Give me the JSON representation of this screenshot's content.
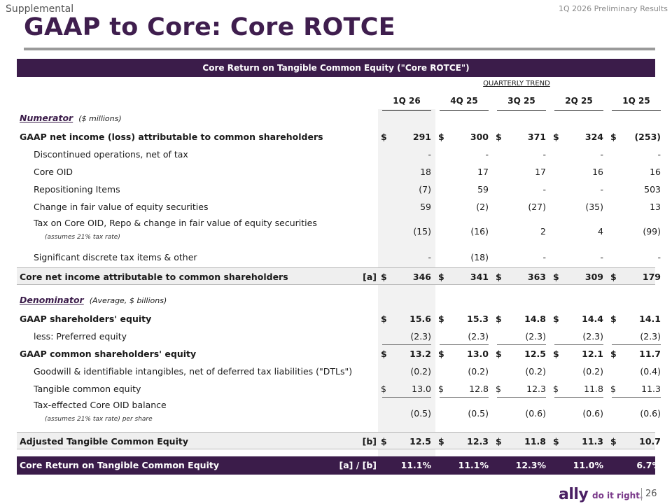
{
  "header": {
    "supplemental": "Supplemental",
    "prelim": "1Q 2026 Preliminary Results",
    "title": "GAAP to Core: Core ROTCE"
  },
  "table": {
    "banner": "Core Return on Tangible Common Equity (\"Core ROTCE\")",
    "trend_label": "QUARTERLY TREND",
    "columns": [
      "1Q 26",
      "4Q 25",
      "3Q 25",
      "2Q 25",
      "1Q 25"
    ],
    "numerator": {
      "head": "Numerator",
      "note": "($ millions)"
    },
    "denominator": {
      "head": "Denominator",
      "note": "(Average, $ billions)"
    },
    "rows": [
      {
        "label": "GAAP net income (loss) attributable to common shareholders",
        "bold": true,
        "dollar": true,
        "values": [
          "291",
          "300",
          "371",
          "324",
          "(253)"
        ]
      },
      {
        "label": "Discontinued operations, net of tax",
        "indent": true,
        "values": [
          "-",
          "-",
          "-",
          "-",
          "-"
        ]
      },
      {
        "label": "Core OID",
        "indent": true,
        "values": [
          "18",
          "17",
          "17",
          "16",
          "16"
        ]
      },
      {
        "label": "Repositioning Items",
        "indent": true,
        "values": [
          "(7)",
          "59",
          "-",
          "-",
          "503"
        ]
      },
      {
        "label": "Change in fair value of equity securities",
        "indent": true,
        "values": [
          "59",
          "(2)",
          "(27)",
          "(35)",
          "13"
        ]
      },
      {
        "label": "Tax on Core OID, Repo & change in fair value of equity securities",
        "sub": "(assumes 21% tax rate)",
        "indent": true,
        "values": [
          "(15)",
          "(16)",
          "2",
          "4",
          "(99)"
        ]
      },
      {
        "label": "Significant discrete tax items & other",
        "indent": true,
        "values": [
          "-",
          "(18)",
          "-",
          "-",
          "-"
        ]
      },
      {
        "label": "Core net income attributable to common shareholders",
        "tag": "[a]",
        "bold": true,
        "dollar": true,
        "shade": true,
        "values": [
          "346",
          "341",
          "363",
          "309",
          "179"
        ]
      },
      {
        "label": "GAAP shareholders' equity",
        "bold": true,
        "dollar": true,
        "values": [
          "15.6",
          "15.3",
          "14.8",
          "14.4",
          "14.1"
        ]
      },
      {
        "label": "less:  Preferred equity",
        "indent": true,
        "values": [
          "(2.3)",
          "(2.3)",
          "(2.3)",
          "(2.3)",
          "(2.3)"
        ]
      },
      {
        "label": "GAAP common shareholders' equity",
        "bold": true,
        "dollar": true,
        "values": [
          "13.2",
          "13.0",
          "12.5",
          "12.1",
          "11.7"
        ]
      },
      {
        "label": "Goodwill & identifiable intangibles, net of deferred tax liabilities (\"DTLs\")",
        "indent": true,
        "values": [
          "(0.2)",
          "(0.2)",
          "(0.2)",
          "(0.2)",
          "(0.4)"
        ]
      },
      {
        "label": "Tangible common equity",
        "indent": true,
        "dollar": true,
        "values": [
          "13.0",
          "12.8",
          "12.3",
          "11.8",
          "11.3"
        ]
      },
      {
        "label": "Tax-effected Core OID balance",
        "sub": "(assumes 21% tax rate) per share",
        "indent": true,
        "values": [
          "(0.5)",
          "(0.5)",
          "(0.6)",
          "(0.6)",
          "(0.6)"
        ]
      },
      {
        "label": "Adjusted Tangible Common Equity",
        "tag": "[b]",
        "bold": true,
        "dollar": true,
        "shade": true,
        "values": [
          "12.5",
          "12.3",
          "11.8",
          "11.3",
          "10.7"
        ]
      }
    ],
    "footer": {
      "label": "Core Return on Tangible Common Equity",
      "tag": "[a] / [b]",
      "values": [
        "11.1%",
        "11.1%",
        "12.3%",
        "11.0%",
        "6.7%"
      ]
    }
  },
  "brand": {
    "logo": "ally",
    "tagline": "do it right.",
    "page": "26"
  },
  "colors": {
    "primary": "#3b1c4a",
    "shade": "#efefef"
  }
}
